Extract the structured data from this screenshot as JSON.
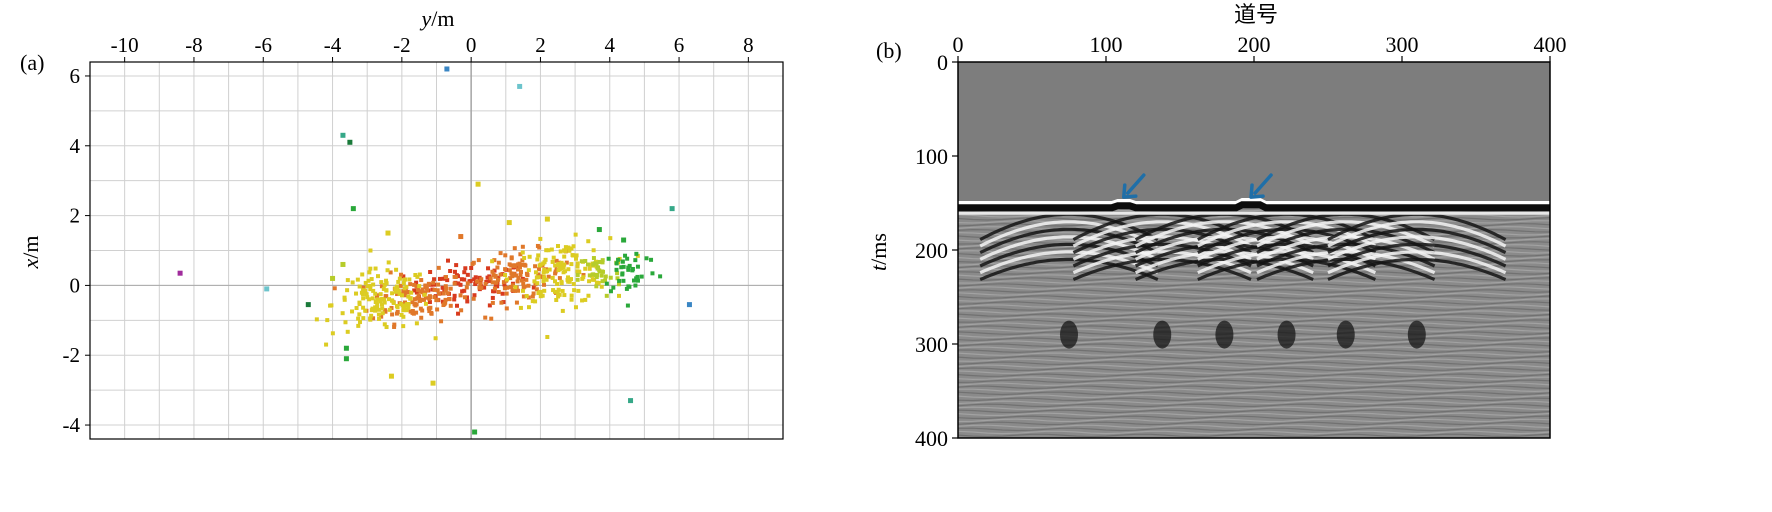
{
  "chart_data": [
    {
      "panel_label": "(a)",
      "type": "scatter",
      "xlabel_var": "y",
      "xlabel_unit": "/m",
      "ylabel_var": "x",
      "ylabel_unit": "/m",
      "xlim": [
        -11,
        9
      ],
      "ylim": [
        -4.4,
        6.4
      ],
      "x_ticks": [
        -10,
        -8,
        -6,
        -4,
        -2,
        0,
        2,
        4,
        6,
        8
      ],
      "y_ticks": [
        -4,
        -2,
        0,
        2,
        4,
        6
      ],
      "x_tick_labels": [
        "-10",
        "-8",
        "-6",
        "-4",
        "-2",
        "0",
        "2",
        "4",
        "6",
        "8"
      ],
      "y_tick_labels": [
        "-4",
        "-2",
        "0",
        "2",
        "4",
        "6"
      ],
      "grid": true,
      "grid_step": 1,
      "x_axis_position": "top",
      "zero_line": {
        "x": 0,
        "y": 0
      },
      "colors": {
        "red": "#d83a1e",
        "orange": "#e0782a",
        "yellow": "#dccc22",
        "yellow_green": "#b6cc2a",
        "green": "#2aa83a",
        "teal": "#36a888",
        "cyan": "#6cc4cc",
        "blue": "#3a86c4",
        "purple": "#a02c9c",
        "dark_green": "#1a7a3a",
        "grid": "#d0d0d0",
        "zero_line": "#aaaaaa"
      },
      "outlier_points": [
        {
          "x": -0.7,
          "y": 6.2,
          "color": "blue"
        },
        {
          "x": 1.4,
          "y": 5.7,
          "color": "cyan"
        },
        {
          "x": -3.7,
          "y": 4.3,
          "color": "teal"
        },
        {
          "x": -3.5,
          "y": 4.1,
          "color": "dark_green"
        },
        {
          "x": 0.2,
          "y": 2.9,
          "color": "yellow"
        },
        {
          "x": -3.4,
          "y": 2.2,
          "color": "green"
        },
        {
          "x": 5.8,
          "y": 2.2,
          "color": "teal"
        },
        {
          "x": -8.4,
          "y": 0.35,
          "color": "purple"
        },
        {
          "x": -5.9,
          "y": -0.1,
          "color": "cyan"
        },
        {
          "x": -4.7,
          "y": -0.55,
          "color": "dark_green"
        },
        {
          "x": 6.3,
          "y": -0.55,
          "color": "blue"
        },
        {
          "x": -3.6,
          "y": -1.8,
          "color": "green"
        },
        {
          "x": -3.6,
          "y": -2.1,
          "color": "green"
        },
        {
          "x": -2.3,
          "y": -2.6,
          "color": "yellow"
        },
        {
          "x": -1.1,
          "y": -2.8,
          "color": "yellow"
        },
        {
          "x": 4.6,
          "y": -3.3,
          "color": "teal"
        },
        {
          "x": 0.1,
          "y": -4.2,
          "color": "green"
        },
        {
          "x": 4.4,
          "y": 1.3,
          "color": "green"
        },
        {
          "x": 3.7,
          "y": 1.6,
          "color": "green"
        },
        {
          "x": 2.2,
          "y": 1.9,
          "color": "yellow"
        },
        {
          "x": 1.1,
          "y": 1.8,
          "color": "yellow"
        },
        {
          "x": -0.3,
          "y": 1.4,
          "color": "orange"
        },
        {
          "x": -2.4,
          "y": 1.5,
          "color": "yellow"
        },
        {
          "x": -3.7,
          "y": 0.6,
          "color": "yellow_green"
        },
        {
          "x": -4.0,
          "y": 0.2,
          "color": "yellow_green"
        }
      ],
      "clusters": [
        {
          "name": "core",
          "center_x": -0.1,
          "center_y": 0.0,
          "spread_x": 0.9,
          "spread_y": 0.3,
          "count": 90,
          "color": "red"
        },
        {
          "name": "left-inner",
          "center_x": -1.5,
          "center_y": -0.25,
          "spread_x": 0.7,
          "spread_y": 0.35,
          "count": 110,
          "color": "orange"
        },
        {
          "name": "right-inner",
          "center_x": 1.3,
          "center_y": 0.2,
          "spread_x": 0.7,
          "spread_y": 0.35,
          "count": 110,
          "color": "orange"
        },
        {
          "name": "left-outer",
          "center_x": -2.6,
          "center_y": -0.3,
          "spread_x": 0.7,
          "spread_y": 0.45,
          "count": 140,
          "color": "yellow"
        },
        {
          "name": "right-outer",
          "center_x": 2.6,
          "center_y": 0.2,
          "spread_x": 0.7,
          "spread_y": 0.45,
          "count": 140,
          "color": "yellow"
        },
        {
          "name": "right-edge",
          "center_x": 3.7,
          "center_y": 0.1,
          "spread_x": 0.3,
          "spread_y": 0.35,
          "count": 35,
          "color": "yellow_green"
        },
        {
          "name": "right-far",
          "center_x": 4.6,
          "center_y": 0.15,
          "spread_x": 0.4,
          "spread_y": 0.35,
          "count": 40,
          "color": "green"
        }
      ],
      "note_scatter": "cloud of points centered near the origin, elongated along y"
    },
    {
      "panel_label": "(b)",
      "type": "heatmap",
      "xlabel": "道号",
      "ylabel_var": "t",
      "ylabel_unit": "/ms",
      "xlim": [
        0,
        400
      ],
      "ylim": [
        0,
        400
      ],
      "x_ticks": [
        0,
        100,
        200,
        300,
        400
      ],
      "y_ticks": [
        0,
        100,
        200,
        300,
        400
      ],
      "x_tick_labels": [
        "0",
        "100",
        "200",
        "300",
        "400"
      ],
      "y_tick_labels": [
        "0",
        "100",
        "200",
        "300",
        "400"
      ],
      "x_axis_position": "top",
      "y_inverted": true,
      "colormap": "grayscale",
      "background_gray": "#7d7d7d",
      "first_arrival_ms": 150,
      "hyperbola_apex_traces": [
        75,
        138,
        180,
        222,
        262,
        310
      ],
      "arrows": [
        {
          "trace": 112,
          "time_ms": 148,
          "color": "#1f6fa8"
        },
        {
          "trace": 198,
          "time_ms": 148,
          "color": "#1f6fa8"
        }
      ]
    }
  ]
}
